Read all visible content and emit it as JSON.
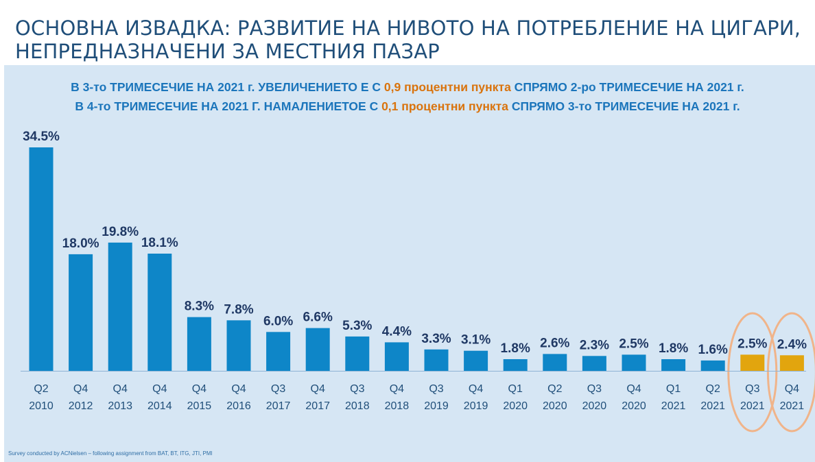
{
  "title": {
    "line1": "ОСНОВНА ИЗВАДКА: РАЗВИТИЕ НА НИВОТО НА ПОТРЕБЛЕНИЕ НА ЦИГАРИ,",
    "line2": "НЕПРЕДНАЗНАЧЕНИ ЗА МЕСТНИЯ ПАЗАР"
  },
  "subtitle": {
    "line1": {
      "part1": "В 3-то ТРИМЕСЕЧИЕ НА 2021 г. УВЕЛИЧЕНИЕТО Е С ",
      "highlight": "0,9 процентни пункта",
      "part2": " СПРЯМО 2-ро ТРИМЕСЕЧИЕ НА 2021 г."
    },
    "line2": {
      "part1": "В 4-то ТРИМЕСЕЧИЕ НА 2021 Г. НАМАЛЕНИЕТОЕ С ",
      "highlight": "0,1 процентни пункта",
      "part2": " СПРЯМО 3-то ТРИМЕСЕЧИЕ НА 2021 г."
    }
  },
  "footnote": "Survey conducted by ACNielsen – following assignment from BAT, BT, ITG, JTI, PMI",
  "colors": {
    "bar": "#0e86c8",
    "highlight_bar": "#e2a50e",
    "circle": "#f0b48a",
    "label": "#1f3864",
    "axis_label": "#1f4e79",
    "panel": "#d6e6f4"
  },
  "chart_data": {
    "type": "bar",
    "title": "",
    "xlabel": "",
    "ylabel": "",
    "ylim": [
      0,
      36
    ],
    "categories": [
      [
        "Q2",
        "2010"
      ],
      [
        "Q4",
        "2012"
      ],
      [
        "Q4",
        "2013"
      ],
      [
        "Q4",
        "2014"
      ],
      [
        "Q4",
        "2015"
      ],
      [
        "Q4",
        "2016"
      ],
      [
        "Q3",
        "2017"
      ],
      [
        "Q4",
        "2017"
      ],
      [
        "Q3",
        "2018"
      ],
      [
        "Q4",
        "2018"
      ],
      [
        "Q3",
        "2019"
      ],
      [
        "Q4",
        "2019"
      ],
      [
        "Q1",
        "2020"
      ],
      [
        "Q2",
        "2020"
      ],
      [
        "Q3",
        "2020"
      ],
      [
        "Q4",
        "2020"
      ],
      [
        "Q1",
        "2021"
      ],
      [
        "Q2",
        "2021"
      ],
      [
        "Q3",
        "2021"
      ],
      [
        "Q4",
        "2021"
      ]
    ],
    "values": [
      34.5,
      18.0,
      19.8,
      18.1,
      8.3,
      7.8,
      6.0,
      6.6,
      5.3,
      4.4,
      3.3,
      3.1,
      1.8,
      2.6,
      2.3,
      2.5,
      1.8,
      1.6,
      2.5,
      2.4
    ],
    "labels": [
      "34.5%",
      "18.0%",
      "19.8%",
      "18.1%",
      "8.3%",
      "7.8%",
      "6.0%",
      "6.6%",
      "5.3%",
      "4.4%",
      "3.3%",
      "3.1%",
      "1.8%",
      "2.6%",
      "2.3%",
      "2.5%",
      "1.8%",
      "1.6%",
      "2.5%",
      "2.4%"
    ],
    "highlighted": [
      18,
      19
    ],
    "grid": false,
    "legend": "none"
  }
}
